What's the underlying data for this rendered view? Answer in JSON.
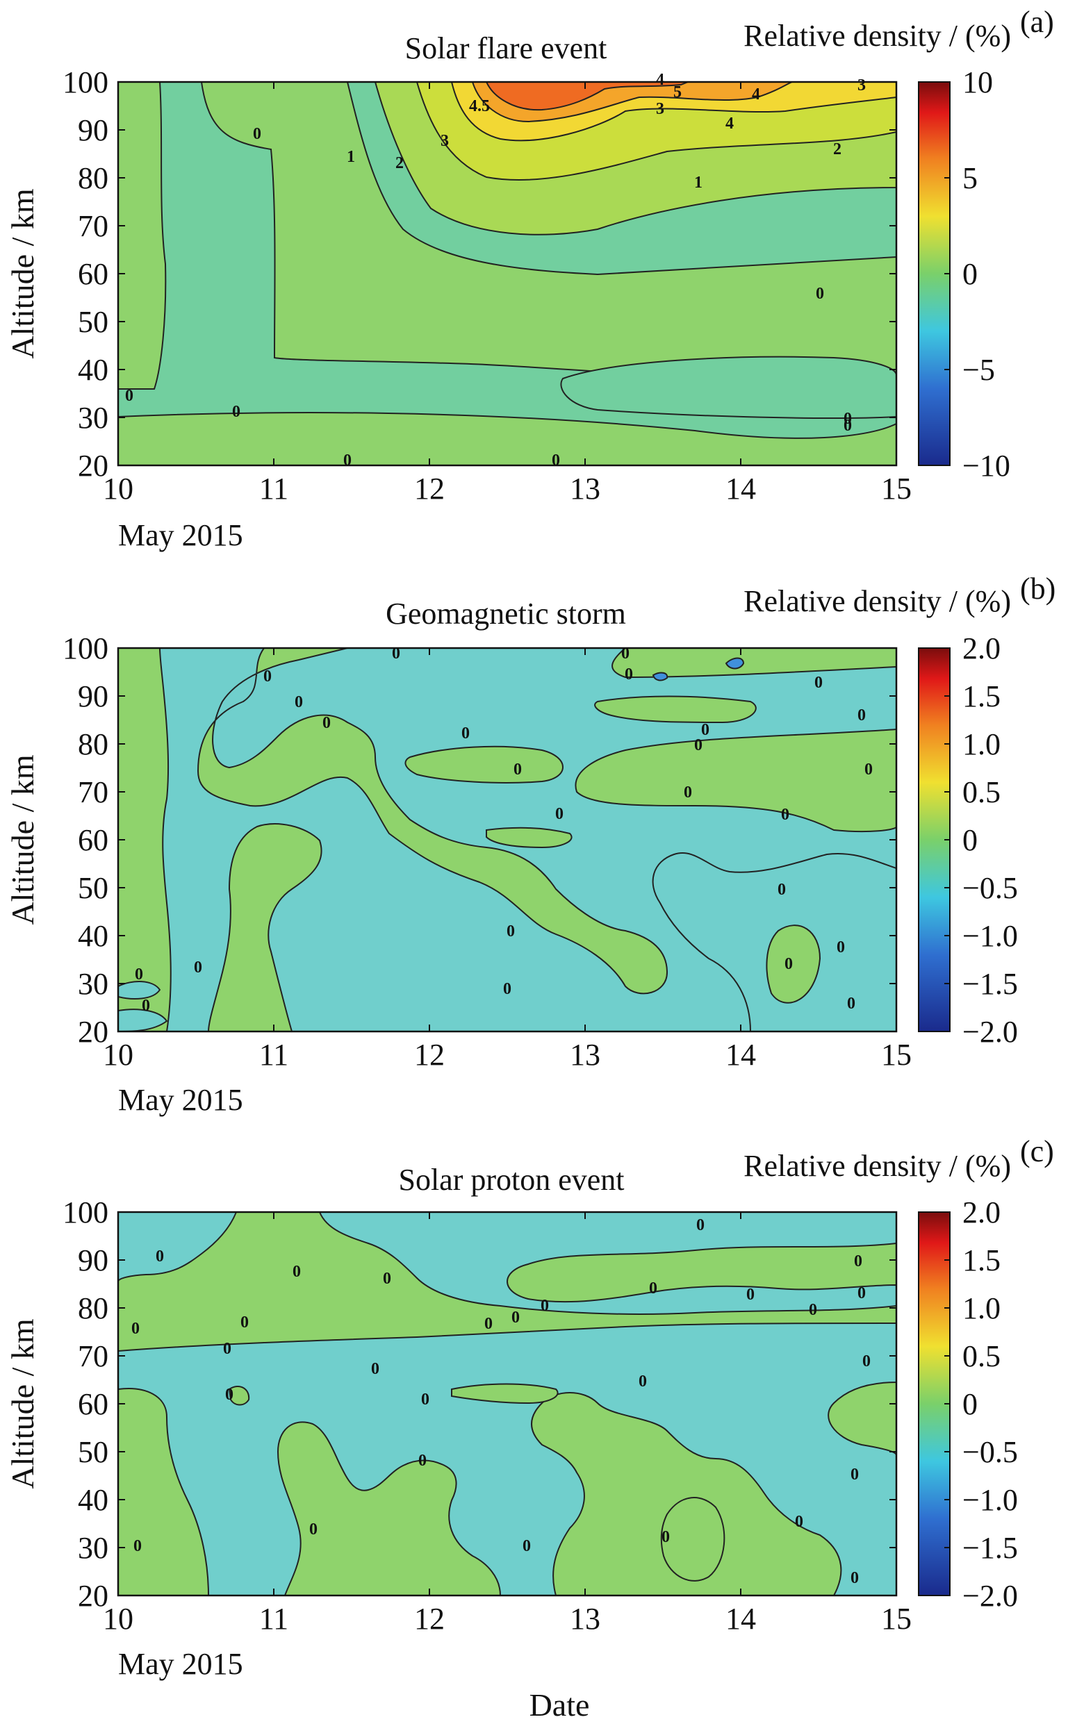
{
  "figure": {
    "xlabel": "Date",
    "x_date_label": "May 2015"
  },
  "colors": {
    "green_band": "#8fd36c",
    "cyan_band": "#70cfcc",
    "teal_band": "#72cf9f",
    "light_green": "#a9d955",
    "yellow_green": "#ccde3c",
    "yellow": "#f2d834",
    "orange": "#f4a52a",
    "orange_red": "#ef6b22",
    "contour_line": "#222222"
  },
  "chart_data": [
    {
      "id": "a",
      "panel_label": "(a)",
      "type": "heatmap",
      "title": "Solar flare event",
      "ylabel": "Altitude / km",
      "colorbar_label": "Relative density / (%)",
      "xlim": [
        10,
        15
      ],
      "ylim": [
        20,
        100
      ],
      "x_ticks": [
        "10",
        "11",
        "12",
        "13",
        "14",
        "15"
      ],
      "y_ticks": [
        "20",
        "30",
        "40",
        "50",
        "60",
        "70",
        "80",
        "90",
        "100"
      ],
      "colorbar_range": [
        -10,
        10
      ],
      "colorbar_ticks": [
        "10",
        "5",
        "0",
        "−5",
        "−10"
      ],
      "contour_labels": [
        "0",
        "0",
        "0",
        "0",
        "0",
        "0",
        "0",
        "0",
        "1",
        "1",
        "2",
        "2",
        "3",
        "3",
        "3",
        "4",
        "4",
        "4",
        "5",
        "4.5"
      ]
    },
    {
      "id": "b",
      "panel_label": "(b)",
      "type": "heatmap",
      "title": "Geomagnetic storm",
      "ylabel": "Altitude / km",
      "colorbar_label": "Relative density / (%)",
      "xlim": [
        10,
        15
      ],
      "ylim": [
        20,
        100
      ],
      "x_ticks": [
        "10",
        "11",
        "12",
        "13",
        "14",
        "15"
      ],
      "y_ticks": [
        "20",
        "30",
        "40",
        "50",
        "60",
        "70",
        "80",
        "90",
        "100"
      ],
      "colorbar_range": [
        -2,
        2
      ],
      "colorbar_ticks": [
        "2.0",
        "1.5",
        "1.0",
        "0.5",
        "0",
        "−0.5",
        "−1.0",
        "−1.5",
        "−2.0"
      ],
      "contour_labels": [
        "0",
        "0",
        "0",
        "0",
        "0",
        "0",
        "0",
        "0",
        "0",
        "0",
        "0",
        "0",
        "0",
        "0",
        "0",
        "0",
        "0",
        "0",
        "0",
        "0",
        "0",
        "0",
        "0",
        "0",
        "0"
      ]
    },
    {
      "id": "c",
      "panel_label": "(c)",
      "type": "heatmap",
      "title": "Solar proton event",
      "ylabel": "Altitude / km",
      "colorbar_label": "Relative density / (%)",
      "xlim": [
        10,
        15
      ],
      "ylim": [
        20,
        100
      ],
      "x_ticks": [
        "10",
        "11",
        "12",
        "13",
        "14",
        "15"
      ],
      "y_ticks": [
        "20",
        "30",
        "40",
        "50",
        "60",
        "70",
        "80",
        "90",
        "100"
      ],
      "colorbar_range": [
        -2,
        2
      ],
      "colorbar_ticks": [
        "2.0",
        "1.5",
        "1.0",
        "0.5",
        "0",
        "−0.5",
        "−1.0",
        "−1.5",
        "−2.0"
      ],
      "contour_labels": [
        "0",
        "0",
        "0",
        "0",
        "0",
        "0",
        "0",
        "0",
        "0",
        "0",
        "0",
        "0",
        "0",
        "0",
        "0",
        "0",
        "0",
        "0",
        "0",
        "0",
        "0",
        "0",
        "0",
        "0",
        "0",
        "0",
        "0",
        "0"
      ]
    }
  ]
}
